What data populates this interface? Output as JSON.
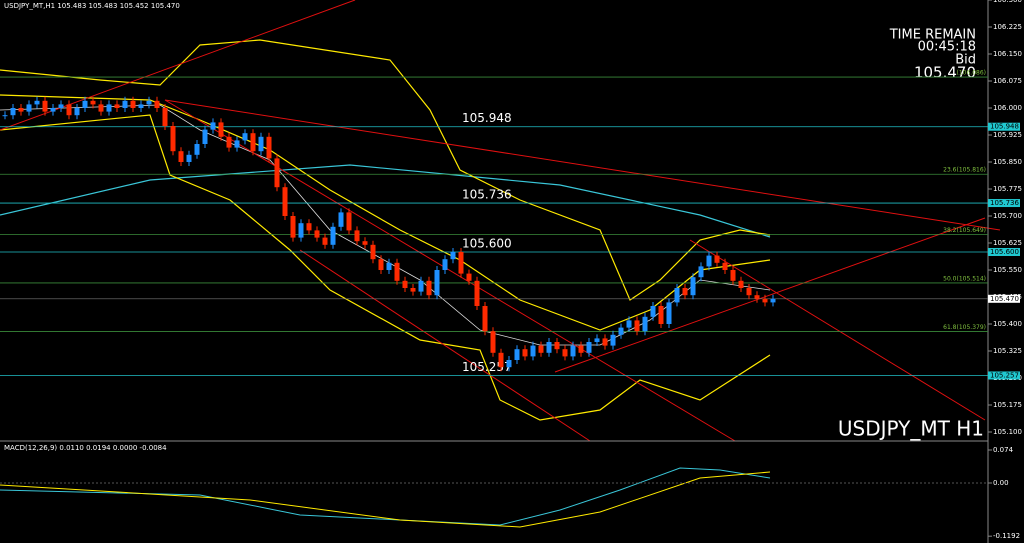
{
  "header": {
    "symbol_info": "USDJPY_MT,H1 105.483 105.483 105.452 105.470"
  },
  "info_panel": {
    "time_label": "TIME REMAIN",
    "time": "00:45:18",
    "bid_label": "Bid",
    "bid": "105.470"
  },
  "watermark": "USDJPY_MT H1",
  "chart_data": {
    "type": "candlestick",
    "ylim": [
      105.075,
      106.3
    ],
    "yticks": [
      {
        "value": 106.3,
        "label": "106.300"
      },
      {
        "value": 106.225,
        "label": "106.225"
      },
      {
        "value": 106.15,
        "label": "106.150"
      },
      {
        "value": 106.075,
        "label": "106.075"
      },
      {
        "value": 106,
        "label": "106.000"
      },
      {
        "value": 105.925,
        "label": "105.925"
      },
      {
        "value": 105.85,
        "label": "105.850"
      },
      {
        "value": 105.775,
        "label": "105.775"
      },
      {
        "value": 105.7,
        "label": "105.700"
      },
      {
        "value": 105.625,
        "label": "105.625"
      },
      {
        "value": 105.55,
        "label": "105.550"
      },
      {
        "value": 105.475,
        "label": "105.475"
      },
      {
        "value": 105.4,
        "label": "105.400"
      },
      {
        "value": 105.325,
        "label": "105.325"
      },
      {
        "value": 105.25,
        "label": "105.250"
      },
      {
        "value": 105.175,
        "label": "105.175"
      },
      {
        "value": 105.1,
        "label": "105.100"
      }
    ],
    "closes": [
      105.98,
      106.0,
      105.99,
      106.01,
      106.02,
      105.99,
      106.0,
      106.01,
      105.98,
      106.0,
      106.02,
      106.01,
      105.99,
      106.01,
      106.0,
      106.02,
      106.0,
      106.01,
      106.02,
      106.0,
      105.95,
      105.88,
      105.85,
      105.87,
      105.9,
      105.94,
      105.96,
      105.92,
      105.89,
      105.91,
      105.93,
      105.88,
      105.92,
      105.86,
      105.78,
      105.7,
      105.64,
      105.68,
      105.66,
      105.64,
      105.62,
      105.67,
      105.71,
      105.66,
      105.63,
      105.62,
      105.58,
      105.55,
      105.57,
      105.52,
      105.5,
      105.49,
      105.52,
      105.48,
      105.55,
      105.58,
      105.6,
      105.54,
      105.52,
      105.45,
      105.38,
      105.32,
      105.28,
      105.3,
      105.33,
      105.31,
      105.34,
      105.32,
      105.35,
      105.33,
      105.31,
      105.34,
      105.32,
      105.35,
      105.36,
      105.34,
      105.37,
      105.39,
      105.41,
      105.38,
      105.42,
      105.45,
      105.4,
      105.46,
      105.5,
      105.48,
      105.53,
      105.56,
      105.59,
      105.57,
      105.55,
      105.52,
      105.5,
      105.48,
      105.47,
      105.46,
      105.47
    ],
    "bull_color": "#1e90ff",
    "bear_color": "#ff2a00",
    "levels": [
      {
        "value": 105.948,
        "label": "105.948"
      },
      {
        "value": 105.736,
        "label": "105.736"
      },
      {
        "value": 105.6,
        "label": "105.600"
      },
      {
        "value": 105.257,
        "label": "105.257"
      }
    ],
    "fib_levels": [
      {
        "value": 106.086,
        "label": "(106.086)"
      },
      {
        "value": 105.816,
        "label": "23.6(105.816)"
      },
      {
        "value": 105.649,
        "label": "38.2(105.649)"
      },
      {
        "value": 105.514,
        "label": "50.0(105.514)"
      },
      {
        "value": 105.379,
        "label": "61.8(105.379)"
      }
    ],
    "current": {
      "value": 105.47,
      "label": "105.470"
    }
  },
  "macd": {
    "title": "MACD(12,26,9) 0.0110 0.0194 0.0000 -0.0084",
    "ylim": [
      -0.1345,
      0.0897
    ],
    "yticks": [
      0.074,
      {
        "value": 0,
        "label": "0.00"
      },
      -0.1192
    ]
  }
}
